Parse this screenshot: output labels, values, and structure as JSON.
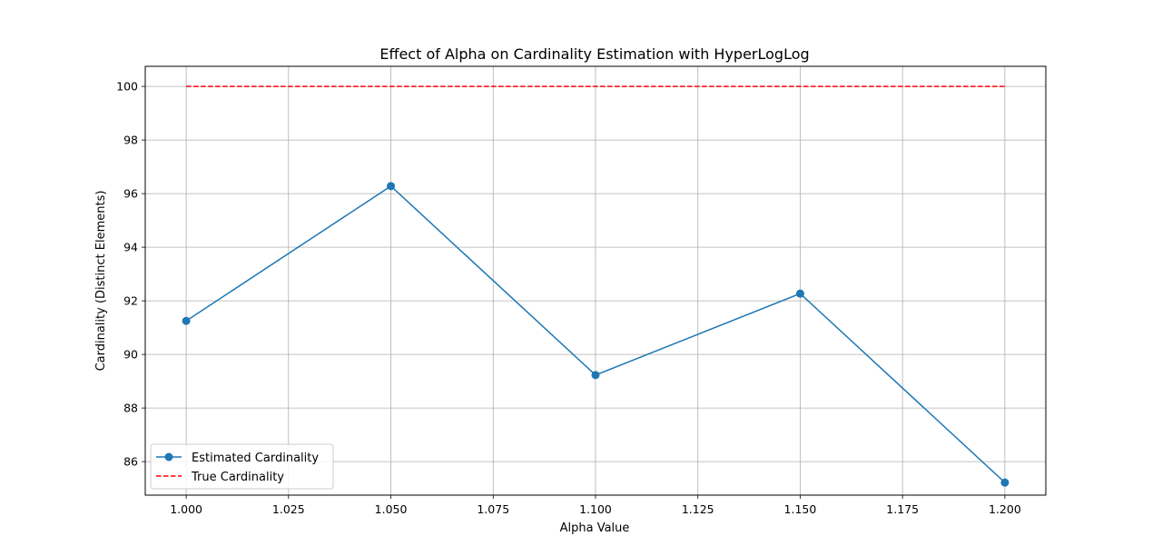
{
  "chart_data": {
    "type": "line",
    "title": "Effect of Alpha on Cardinality Estimation with HyperLogLog",
    "xlabel": "Alpha Value",
    "ylabel": "Cardinality (Distinct Elements)",
    "xlim": [
      0.99,
      1.21
    ],
    "ylim": [
      84.75,
      100.75
    ],
    "xticks": [
      1.0,
      1.025,
      1.05,
      1.075,
      1.1,
      1.125,
      1.15,
      1.175,
      1.2
    ],
    "xtick_labels": [
      "1.000",
      "1.025",
      "1.050",
      "1.075",
      "1.100",
      "1.125",
      "1.150",
      "1.175",
      "1.200"
    ],
    "yticks": [
      86,
      88,
      90,
      92,
      94,
      96,
      98,
      100
    ],
    "ytick_labels": [
      "86",
      "88",
      "90",
      "92",
      "94",
      "96",
      "98",
      "100"
    ],
    "grid": true,
    "legend_position": "lower-left",
    "series": [
      {
        "name": "Estimated Cardinality",
        "style": "solid-with-markers",
        "color": "#1f77b4",
        "x": [
          1.0,
          1.05,
          1.1,
          1.15,
          1.2
        ],
        "y": [
          91.25,
          96.28,
          89.23,
          92.27,
          85.22
        ]
      },
      {
        "name": "True Cardinality",
        "style": "dashed",
        "color": "#ff0000",
        "x": [
          1.0,
          1.2
        ],
        "y": [
          100,
          100
        ]
      }
    ]
  }
}
